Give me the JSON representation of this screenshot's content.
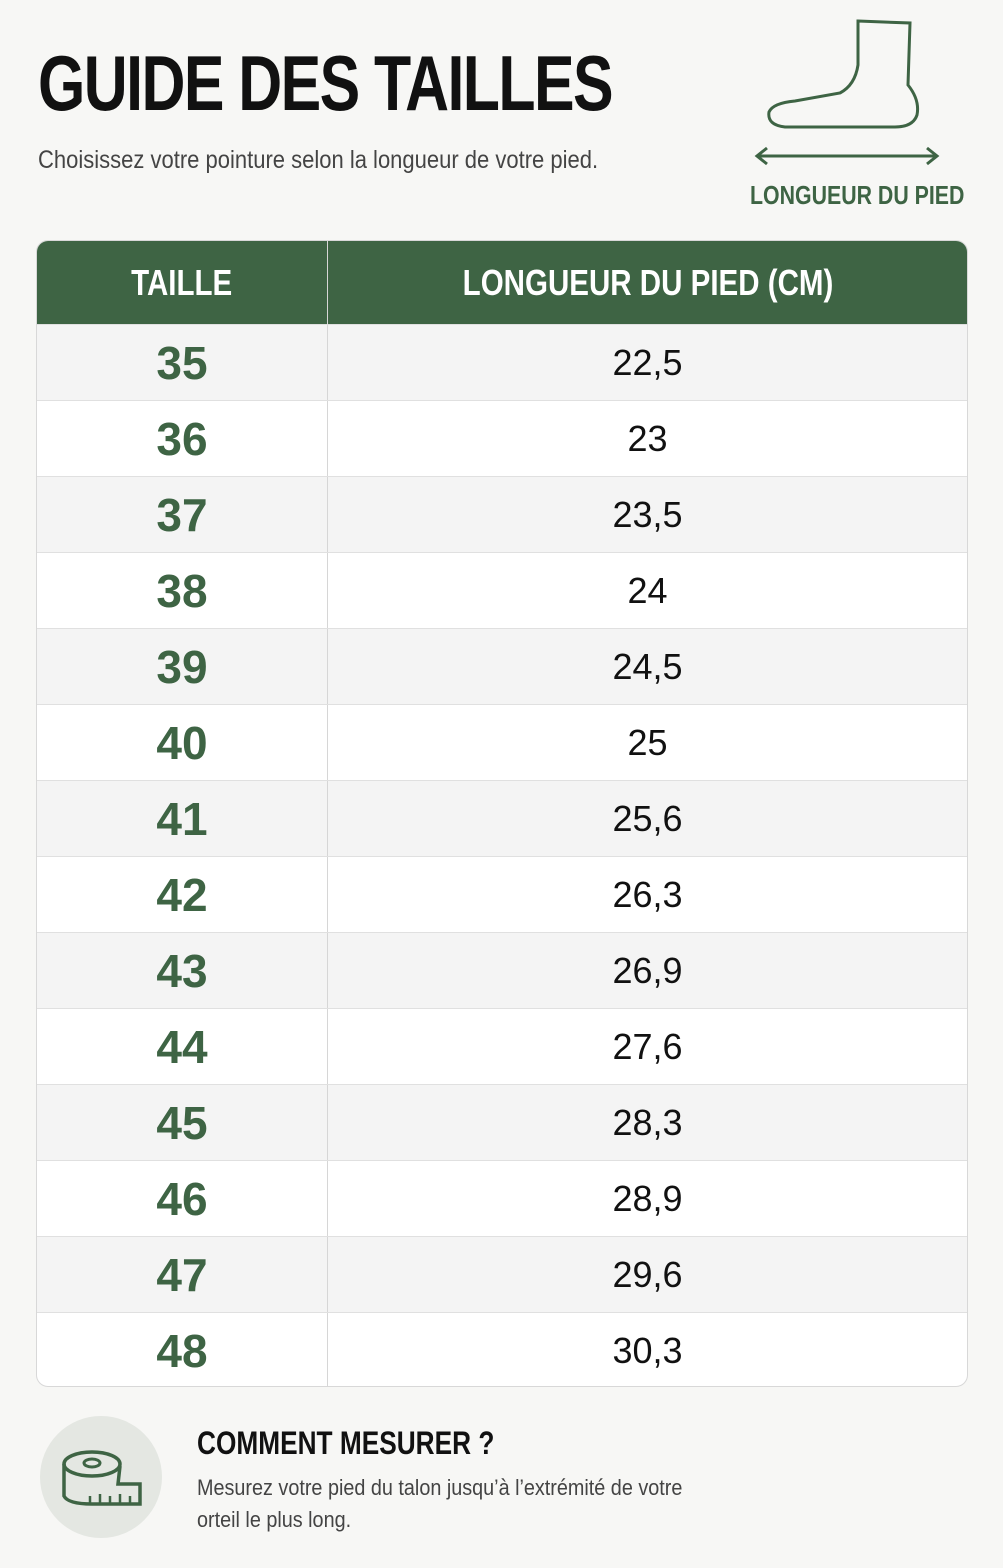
{
  "header": {
    "title": "GUIDE DES TAILLES",
    "subtitle": "Choisissez votre pointure selon la longueur de votre pied.",
    "foot_label": "LONGUEUR DU PIED"
  },
  "table": {
    "columns": [
      "TAILLE",
      "LONGUEUR DU PIED (CM)"
    ],
    "rows": [
      [
        "35",
        "22,5"
      ],
      [
        "36",
        "23"
      ],
      [
        "37",
        "23,5"
      ],
      [
        "38",
        "24"
      ],
      [
        "39",
        "24,5"
      ],
      [
        "40",
        "25"
      ],
      [
        "41",
        "25,6"
      ],
      [
        "42",
        "26,3"
      ],
      [
        "43",
        "26,9"
      ],
      [
        "44",
        "27,6"
      ],
      [
        "45",
        "28,3"
      ],
      [
        "46",
        "28,9"
      ],
      [
        "47",
        "29,6"
      ],
      [
        "48",
        "30,3"
      ]
    ]
  },
  "footer": {
    "title": "COMMENT MESURER ?",
    "text": "Mesurez votre pied du talon jusqu’à l’extrémité de votre orteil le plus long."
  }
}
